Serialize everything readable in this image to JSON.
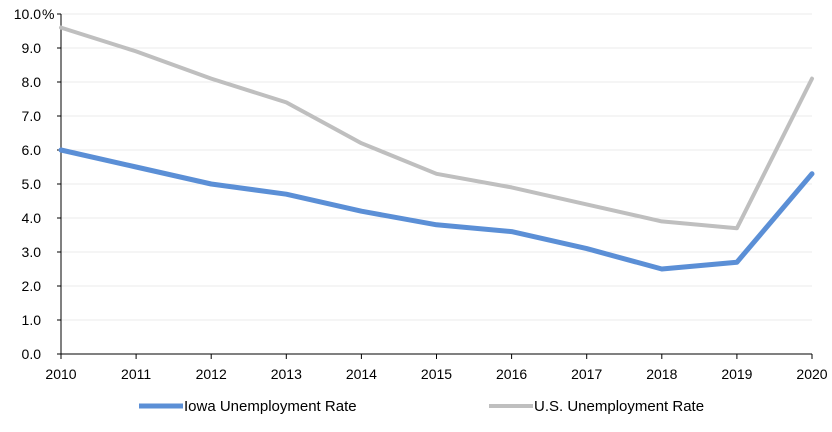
{
  "chart_data": {
    "type": "line",
    "x": [
      2010,
      2011,
      2012,
      2013,
      2014,
      2015,
      2016,
      2017,
      2018,
      2019,
      2020
    ],
    "x_tick_labels": [
      "2010",
      "2011",
      "2012",
      "2013",
      "2014",
      "2015",
      "2016",
      "2017",
      "2018",
      "2019",
      "2020"
    ],
    "y_tick_labels": [
      "0.0",
      "1.0",
      "2.0",
      "3.0",
      "4.0",
      "5.0",
      "6.0",
      "7.0",
      "8.0",
      "9.0",
      "10.0"
    ],
    "y_unit": "%",
    "ylim": [
      0,
      10
    ],
    "grid": true,
    "legend_position": "bottom",
    "series": [
      {
        "name": "Iowa Unemployment Rate",
        "color": "#5b8fd6",
        "values": [
          6.0,
          5.5,
          5.0,
          4.7,
          4.2,
          3.8,
          3.6,
          3.1,
          2.5,
          2.7,
          5.3
        ]
      },
      {
        "name": "U.S. Unemployment Rate",
        "color": "#bfbfbf",
        "values": [
          9.6,
          8.9,
          8.1,
          7.4,
          6.2,
          5.3,
          4.9,
          4.4,
          3.9,
          3.7,
          8.1
        ]
      }
    ]
  }
}
